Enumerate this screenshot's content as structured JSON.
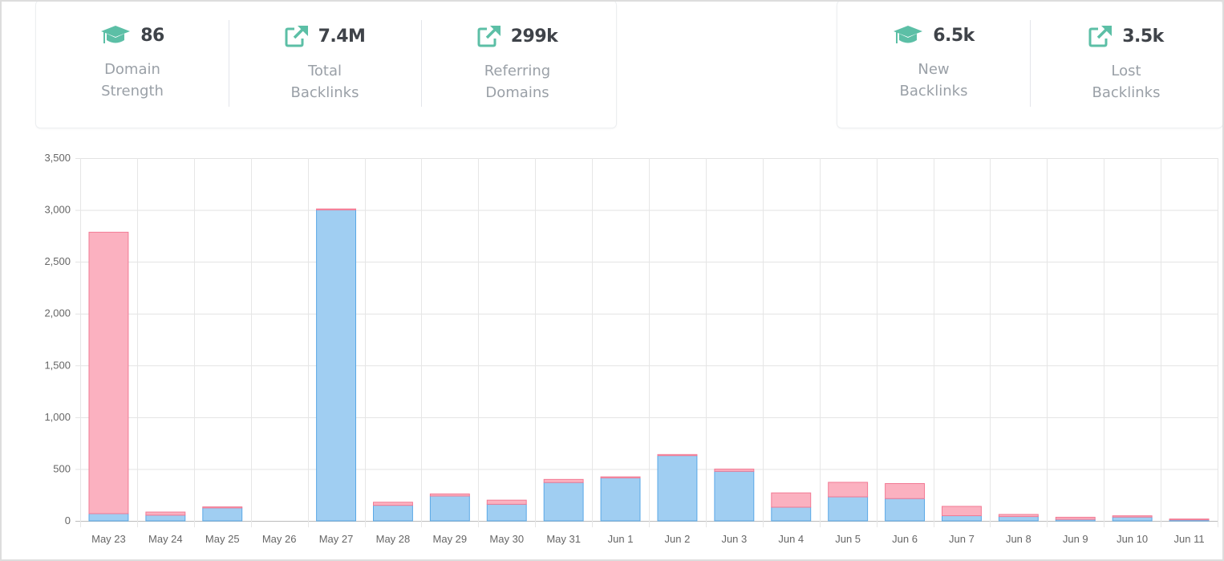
{
  "stats_left": [
    {
      "value": "86",
      "label": "Domain\nStrength",
      "icon": "graduation-cap-icon"
    },
    {
      "value": "7.4M",
      "label": "Total\nBacklinks",
      "icon": "external-link-icon"
    },
    {
      "value": "299k",
      "label": "Referring\nDomains",
      "icon": "external-link-icon"
    }
  ],
  "stats_right": [
    {
      "value": "6.5k",
      "label": "New\nBacklinks",
      "icon": "graduation-cap-icon"
    },
    {
      "value": "3.5k",
      "label": "Lost\nBacklinks",
      "icon": "external-link-icon"
    }
  ],
  "colors": {
    "accent": "#5cbfa6",
    "new_fill": "#a0cef2",
    "new_border": "#5aa8e6",
    "lost_fill": "#fbb1c0",
    "lost_border": "#f27a94"
  },
  "chart_data": {
    "type": "bar",
    "stacked": true,
    "categories": [
      "May 23",
      "May 24",
      "May 25",
      "May 26",
      "May 27",
      "May 28",
      "May 29",
      "May 30",
      "May 31",
      "Jun 1",
      "Jun 2",
      "Jun 3",
      "Jun 4",
      "Jun 5",
      "Jun 6",
      "Jun 7",
      "Jun 8",
      "Jun 9",
      "Jun 10",
      "Jun 11"
    ],
    "series": [
      {
        "name": "New Backlinks",
        "values": [
          70,
          55,
          125,
          0,
          3000,
          150,
          240,
          160,
          370,
          415,
          630,
          478,
          132,
          232,
          215,
          50,
          42,
          15,
          37,
          10
        ]
      },
      {
        "name": "Lost Backlinks",
        "values": [
          2715,
          30,
          10,
          0,
          10,
          30,
          20,
          40,
          30,
          10,
          10,
          22,
          138,
          140,
          145,
          90,
          20,
          20,
          12,
          8
        ]
      }
    ],
    "ylim": [
      0,
      3500
    ],
    "yticks": [
      0,
      500,
      1000,
      1500,
      2000,
      2500,
      3000,
      3500
    ],
    "ytick_labels": [
      "0",
      "500",
      "1,000",
      "1,500",
      "2,000",
      "2,500",
      "3,000",
      "3,500"
    ],
    "grid": true,
    "legend": "none"
  }
}
